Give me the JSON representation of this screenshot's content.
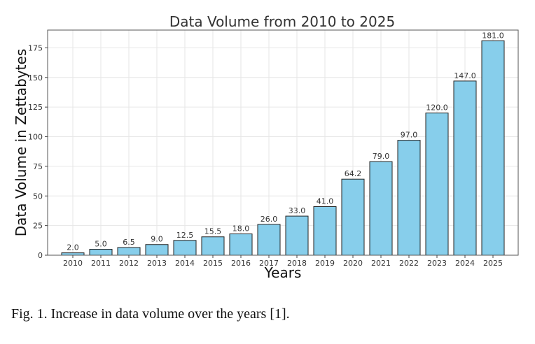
{
  "chart_data": {
    "type": "bar",
    "title": "Data Volume from 2010 to 2025",
    "xlabel": "Years",
    "ylabel": "Data Volume in Zettabytes",
    "categories": [
      "2010",
      "2011",
      "2012",
      "2013",
      "2014",
      "2015",
      "2016",
      "2017",
      "2018",
      "2019",
      "2020",
      "2021",
      "2022",
      "2023",
      "2024",
      "2025"
    ],
    "values": [
      2.0,
      5.0,
      6.5,
      9.0,
      12.5,
      15.5,
      18.0,
      26.0,
      33.0,
      41.0,
      64.2,
      79.0,
      97.0,
      120.0,
      147.0,
      181.0
    ],
    "value_labels": [
      "2.0",
      "5.0",
      "6.5",
      "9.0",
      "12.5",
      "15.5",
      "18.0",
      "26.0",
      "33.0",
      "41.0",
      "64.2",
      "79.0",
      "97.0",
      "120.0",
      "147.0",
      "181.0"
    ],
    "ylim": [
      0,
      190
    ],
    "yticks": [
      0,
      25,
      50,
      75,
      100,
      125,
      150,
      175
    ],
    "grid": true,
    "bar_color": "#87CEEB",
    "bar_edge_color": "#222222"
  },
  "caption": "Fig. 1.  Increase in data volume over the years [1]."
}
